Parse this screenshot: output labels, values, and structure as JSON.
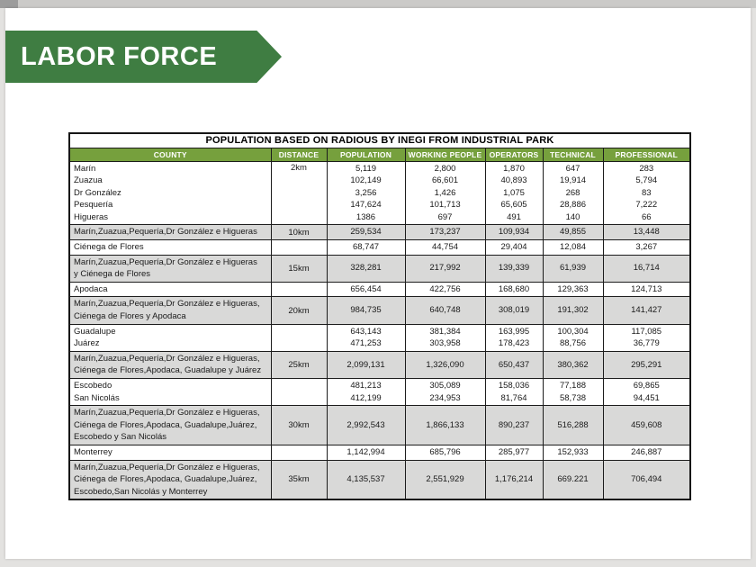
{
  "banner": {
    "title": "LABOR FORCE"
  },
  "colors": {
    "banner_green": "#3f7d42",
    "header_green": "#76a03d",
    "row_shade": "#d9d9d8"
  },
  "table": {
    "title": "POPULATION BASED ON RADIOUS BY INEGI FROM INDUSTRIAL PARK",
    "columns": [
      "COUNTY",
      "DISTANCE",
      "POPULATION",
      "WORKING PEOPLE",
      "OPERATORS",
      "TECHNICAL",
      "PROFESSIONAL"
    ],
    "blocks": [
      {
        "county": [
          "Marín",
          "Zuazua",
          "Dr González",
          "Pesquería",
          "Higueras"
        ],
        "distance": "2km",
        "population": [
          "5,119",
          "102,149",
          "3,256",
          "147,624",
          "1386"
        ],
        "working_people": [
          "2,800",
          "66,601",
          "1,426",
          "101,713",
          "697"
        ],
        "operators": [
          "1,870",
          "40,893",
          "1,075",
          "65,605",
          "491"
        ],
        "technical": [
          "647",
          "19,914",
          "268",
          "28,886",
          "140"
        ],
        "professional": [
          "283",
          "5,794",
          "83",
          "7,222",
          "66"
        ]
      },
      {
        "county": [
          "Marín,Zuazua,Pequería,Dr González e Higueras"
        ],
        "distance": "10km",
        "population": [
          "259,534"
        ],
        "working_people": [
          "173,237"
        ],
        "operators": [
          "109,934"
        ],
        "technical": [
          "49,855"
        ],
        "professional": [
          "13,448"
        ]
      },
      {
        "county": [
          "Ciénega de Flores"
        ],
        "distance": "",
        "population": [
          "68,747"
        ],
        "working_people": [
          "44,754"
        ],
        "operators": [
          "29,404"
        ],
        "technical": [
          "12,084"
        ],
        "professional": [
          "3,267"
        ]
      },
      {
        "county": [
          "Marín,Zuazua,Pequería,Dr González e Higueras",
          "y Ciénega de Flores"
        ],
        "distance": "15km",
        "population": [
          "328,281"
        ],
        "working_people": [
          "217,992"
        ],
        "operators": [
          "139,339"
        ],
        "technical": [
          "61,939"
        ],
        "professional": [
          "16,714"
        ]
      },
      {
        "county": [
          "Apodaca"
        ],
        "distance": "",
        "population": [
          "656,454"
        ],
        "working_people": [
          "422,756"
        ],
        "operators": [
          "168,680"
        ],
        "technical": [
          "129,363"
        ],
        "professional": [
          "124,713"
        ]
      },
      {
        "county": [
          "Marín,Zuazua,Pequería,Dr González e Higueras,",
          "Ciénega de Flores y Apodaca"
        ],
        "distance": "20km",
        "population": [
          "984,735"
        ],
        "working_people": [
          "640,748"
        ],
        "operators": [
          "308,019"
        ],
        "technical": [
          "191,302"
        ],
        "professional": [
          "141,427"
        ]
      },
      {
        "county": [
          "Guadalupe",
          "Juárez"
        ],
        "distance": "",
        "population": [
          "643,143",
          "471,253"
        ],
        "working_people": [
          "381,384",
          "303,958"
        ],
        "operators": [
          "163,995",
          "178,423"
        ],
        "technical": [
          "100,304",
          "88,756"
        ],
        "professional": [
          "117,085",
          "36,779"
        ]
      },
      {
        "county": [
          "Marín,Zuazua,Pequería,Dr González e Higueras,",
          "Ciénega de Flores,Apodaca, Guadalupe y Juárez"
        ],
        "distance": "25km",
        "population": [
          "2,099,131"
        ],
        "working_people": [
          "1,326,090"
        ],
        "operators": [
          "650,437"
        ],
        "technical": [
          "380,362"
        ],
        "professional": [
          "295,291"
        ]
      },
      {
        "county": [
          "Escobedo",
          "San Nicolás"
        ],
        "distance": "",
        "population": [
          "481,213",
          "412,199"
        ],
        "working_people": [
          "305,089",
          "234,953"
        ],
        "operators": [
          "158,036",
          "81,764"
        ],
        "technical": [
          "77,188",
          "58,738"
        ],
        "professional": [
          "69,865",
          "94,451"
        ]
      },
      {
        "county": [
          "Marín,Zuazua,Pequería,Dr González e Higueras,",
          "Ciénega de Flores,Apodaca, Guadalupe,Juárez,",
          "Escobedo y San Nicolás"
        ],
        "distance": "30km",
        "population": [
          "2,992,543"
        ],
        "working_people": [
          "1,866,133"
        ],
        "operators": [
          "890,237"
        ],
        "technical": [
          "516,288"
        ],
        "professional": [
          "459,608"
        ]
      },
      {
        "county": [
          "Monterrey"
        ],
        "distance": "",
        "population": [
          "1,142,994"
        ],
        "working_people": [
          "685,796"
        ],
        "operators": [
          "285,977"
        ],
        "technical": [
          "152,933"
        ],
        "professional": [
          "246,887"
        ]
      },
      {
        "county": [
          "Marín,Zuazua,Pequería,Dr González e Higueras,",
          "Ciénega de Flores,Apodaca, Guadalupe,Juárez,",
          "Escobedo,San Nicolás y Monterrey"
        ],
        "distance": "35km",
        "population": [
          "4,135,537"
        ],
        "working_people": [
          "2,551,929"
        ],
        "operators": [
          "1,176,214"
        ],
        "technical": [
          "669.221"
        ],
        "professional": [
          "706,494"
        ]
      }
    ]
  }
}
